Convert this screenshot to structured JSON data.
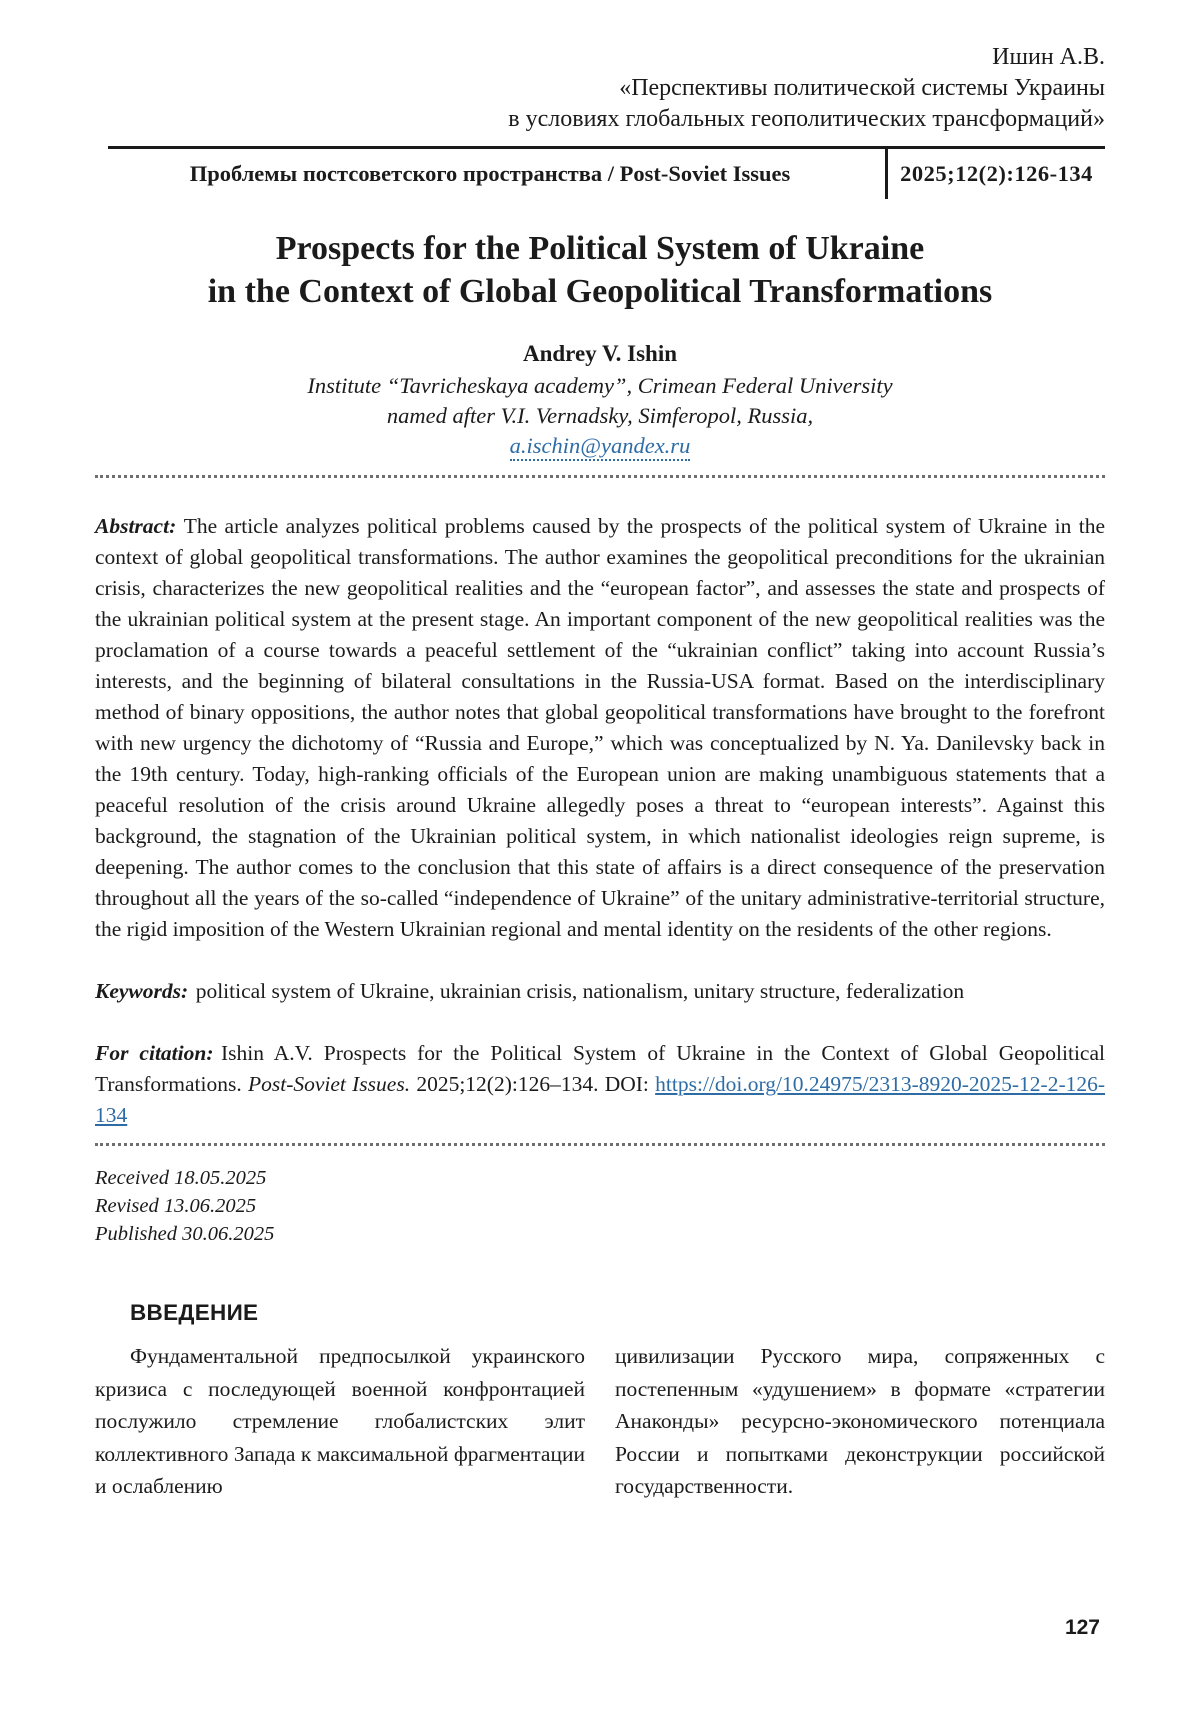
{
  "running_head": {
    "author_ref": "Ишин А.В.",
    "title_ref_line1": "«Перспективы политической системы Украины",
    "title_ref_line2": "в условиях глобальных геополитических трансформаций»"
  },
  "journal_band": {
    "journal": "Проблемы постсоветского пространства / Post-Soviet Issues",
    "issue": "2025;12(2):126-134"
  },
  "article": {
    "title_line1": "Prospects for the Political System of Ukraine",
    "title_line2": "in the Context of Global Geopolitical Transformations",
    "author": "Andrey V. Ishin",
    "affiliation_line1": "Institute  “Tavricheskaya academy”, Crimean Federal University",
    "affiliation_line2": "named after V.I. Vernadsky, Simferopol, Russia,",
    "email": "a.ischin@yandex.ru"
  },
  "abstract": {
    "label": "Abstract:",
    "text": "The article analyzes political problems caused by the prospects of the political system of Ukraine in the context of global geopolitical transformations. The author examines the geopolitical preconditions for the ukrainian crisis, characterizes the new geopolitical realities and the “european factor”, and assesses the state and prospects of the ukrainian political system at the present stage. An important component of the new geopolitical realities was the proclamation of a course towards a peaceful settlement of the “ukrainian conflict” taking into account Russia’s interests, and the beginning of bilateral consultations in the Russia-USA format. Based on the interdisciplinary method of binary oppositions, the author notes that global geopolitical transformations have brought to the forefront with new urgency the dichotomy of “Russia and Europe,” which was conceptualized by N. Ya. Danilevsky back in the 19th century. Today, high-ranking officials of the European union are making unambiguous statements that a peaceful resolution of the crisis around Ukraine allegedly poses a threat to “european interests”. Against this background, the stagnation of the Ukrainian political system, in which nationalist ideologies reign supreme, is deepening. The author comes to the conclusion that this state of affairs is a  direct consequence of the preservation throughout all the years of the so-called “independence of  Ukraine” of the unitary administrative-territorial structure, the rigid imposition of the Western Ukrainian regional and mental identity on the residents of the other regions."
  },
  "keywords": {
    "label": "Keywords:",
    "text": "political system of Ukraine, ukrainian crisis, nationalism, unitary structure, federalization"
  },
  "citation": {
    "label": "For citation:",
    "text_before_journal": "Ishin A.V. Prospects for the Political System of Ukraine in the Context of Global Geopolitical Transformations.",
    "journal": "Post-Soviet Issues.",
    "text_after_journal": "2025;12(2):126–134. DOI:",
    "doi_link": "https://doi.org/10.24975/2313-8920-2025-12-2-126-134"
  },
  "dates": {
    "received": "Received 18.05.2025",
    "revised": "Revised 13.06.2025",
    "published": "Published 30.06.2025"
  },
  "introduction": {
    "heading": "ВВЕДЕНИЕ",
    "column_left": "Фундаментальной предпосылкой украинского кризиса с последующей военной конфронтацией послужило стремление глобалистских элит коллективного Запада к максимальной фрагментации и ослаблению",
    "column_right": "цивилизации Русского мира, сопряженных с постепенным «удушением» в формате «стратегии Анаконды» ресурсно-экономического потенциала России и попытками деконструкции российской государственности."
  },
  "page": {
    "number": "127"
  },
  "colors": {
    "link_blue": "#2e6ca6",
    "text": "#1b1b1b",
    "rule": "#1a1a1a"
  }
}
